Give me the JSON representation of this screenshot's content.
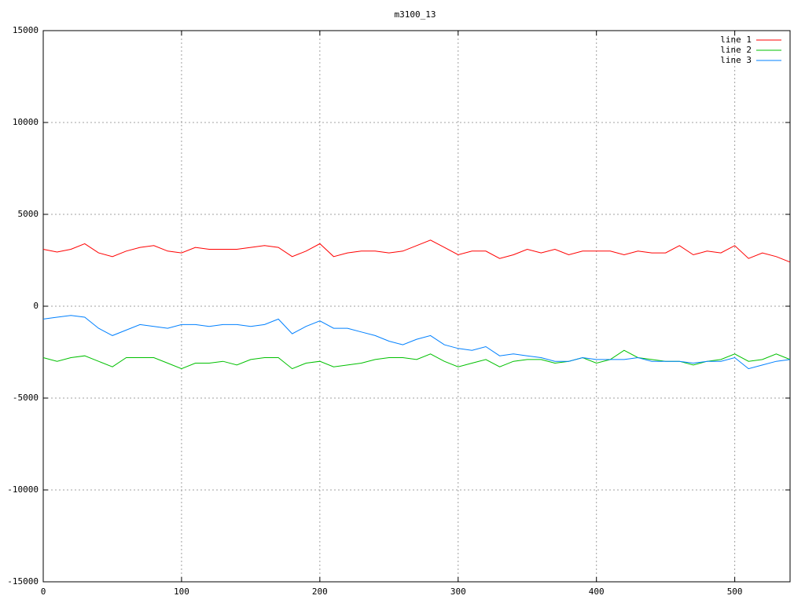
{
  "chart_data": {
    "type": "line",
    "title": "m3100_13",
    "x": [
      0,
      10,
      20,
      30,
      40,
      50,
      60,
      70,
      80,
      90,
      100,
      110,
      120,
      130,
      140,
      150,
      160,
      170,
      180,
      190,
      200,
      210,
      220,
      230,
      240,
      250,
      260,
      270,
      280,
      290,
      300,
      310,
      320,
      330,
      340,
      350,
      360,
      370,
      380,
      390,
      400,
      410,
      420,
      430,
      440,
      450,
      460,
      470,
      480,
      490,
      500,
      510,
      520,
      530,
      540
    ],
    "series": [
      {
        "name": "line 1",
        "color": "#ff0000",
        "values": [
          3100,
          2950,
          3100,
          3400,
          2900,
          2700,
          3000,
          3200,
          3300,
          3000,
          2900,
          3200,
          3100,
          3100,
          3100,
          3200,
          3300,
          3200,
          2700,
          3000,
          3400,
          2700,
          2900,
          3000,
          3000,
          2900,
          3000,
          3300,
          3600,
          3200,
          2800,
          3000,
          3000,
          2600,
          2800,
          3100,
          2900,
          3100,
          2800,
          3000,
          3000,
          3000,
          2800,
          3000,
          2900,
          2900,
          3300,
          2800,
          3000,
          2900,
          3300,
          2600,
          2900,
          2700,
          2400
        ]
      },
      {
        "name": "line 2",
        "color": "#00c000",
        "values": [
          -2800,
          -3000,
          -2800,
          -2700,
          -3000,
          -3300,
          -2800,
          -2800,
          -2800,
          -3100,
          -3400,
          -3100,
          -3100,
          -3000,
          -3200,
          -2900,
          -2800,
          -2800,
          -3400,
          -3100,
          -3000,
          -3300,
          -3200,
          -3100,
          -2900,
          -2800,
          -2800,
          -2900,
          -2600,
          -3000,
          -3300,
          -3100,
          -2900,
          -3300,
          -3000,
          -2900,
          -2900,
          -3100,
          -3000,
          -2800,
          -3100,
          -2900,
          -2400,
          -2800,
          -2900,
          -3000,
          -3000,
          -3200,
          -3000,
          -2900,
          -2600,
          -3000,
          -2900,
          -2600,
          -2900
        ]
      },
      {
        "name": "line 3",
        "color": "#0080ff",
        "values": [
          -700,
          -600,
          -500,
          -600,
          -1200,
          -1600,
          -1300,
          -1000,
          -1100,
          -1200,
          -1000,
          -1000,
          -1100,
          -1000,
          -1000,
          -1100,
          -1000,
          -700,
          -1500,
          -1100,
          -800,
          -1200,
          -1200,
          -1400,
          -1600,
          -1900,
          -2100,
          -1800,
          -1600,
          -2100,
          -2300,
          -2400,
          -2200,
          -2700,
          -2600,
          -2700,
          -2800,
          -3000,
          -3000,
          -2800,
          -2900,
          -2900,
          -2900,
          -2800,
          -3000,
          -3000,
          -3000,
          -3100,
          -3000,
          -3000,
          -2800,
          -3400,
          -3200,
          -3000,
          -2900
        ]
      }
    ],
    "xlim": [
      0,
      540
    ],
    "xticks": [
      0,
      100,
      200,
      300,
      400,
      500
    ],
    "ylim": [
      -15000,
      15000
    ],
    "yticks": [
      -15000,
      -10000,
      -5000,
      0,
      5000,
      10000,
      15000
    ],
    "grid": true,
    "legend": "top-right"
  }
}
